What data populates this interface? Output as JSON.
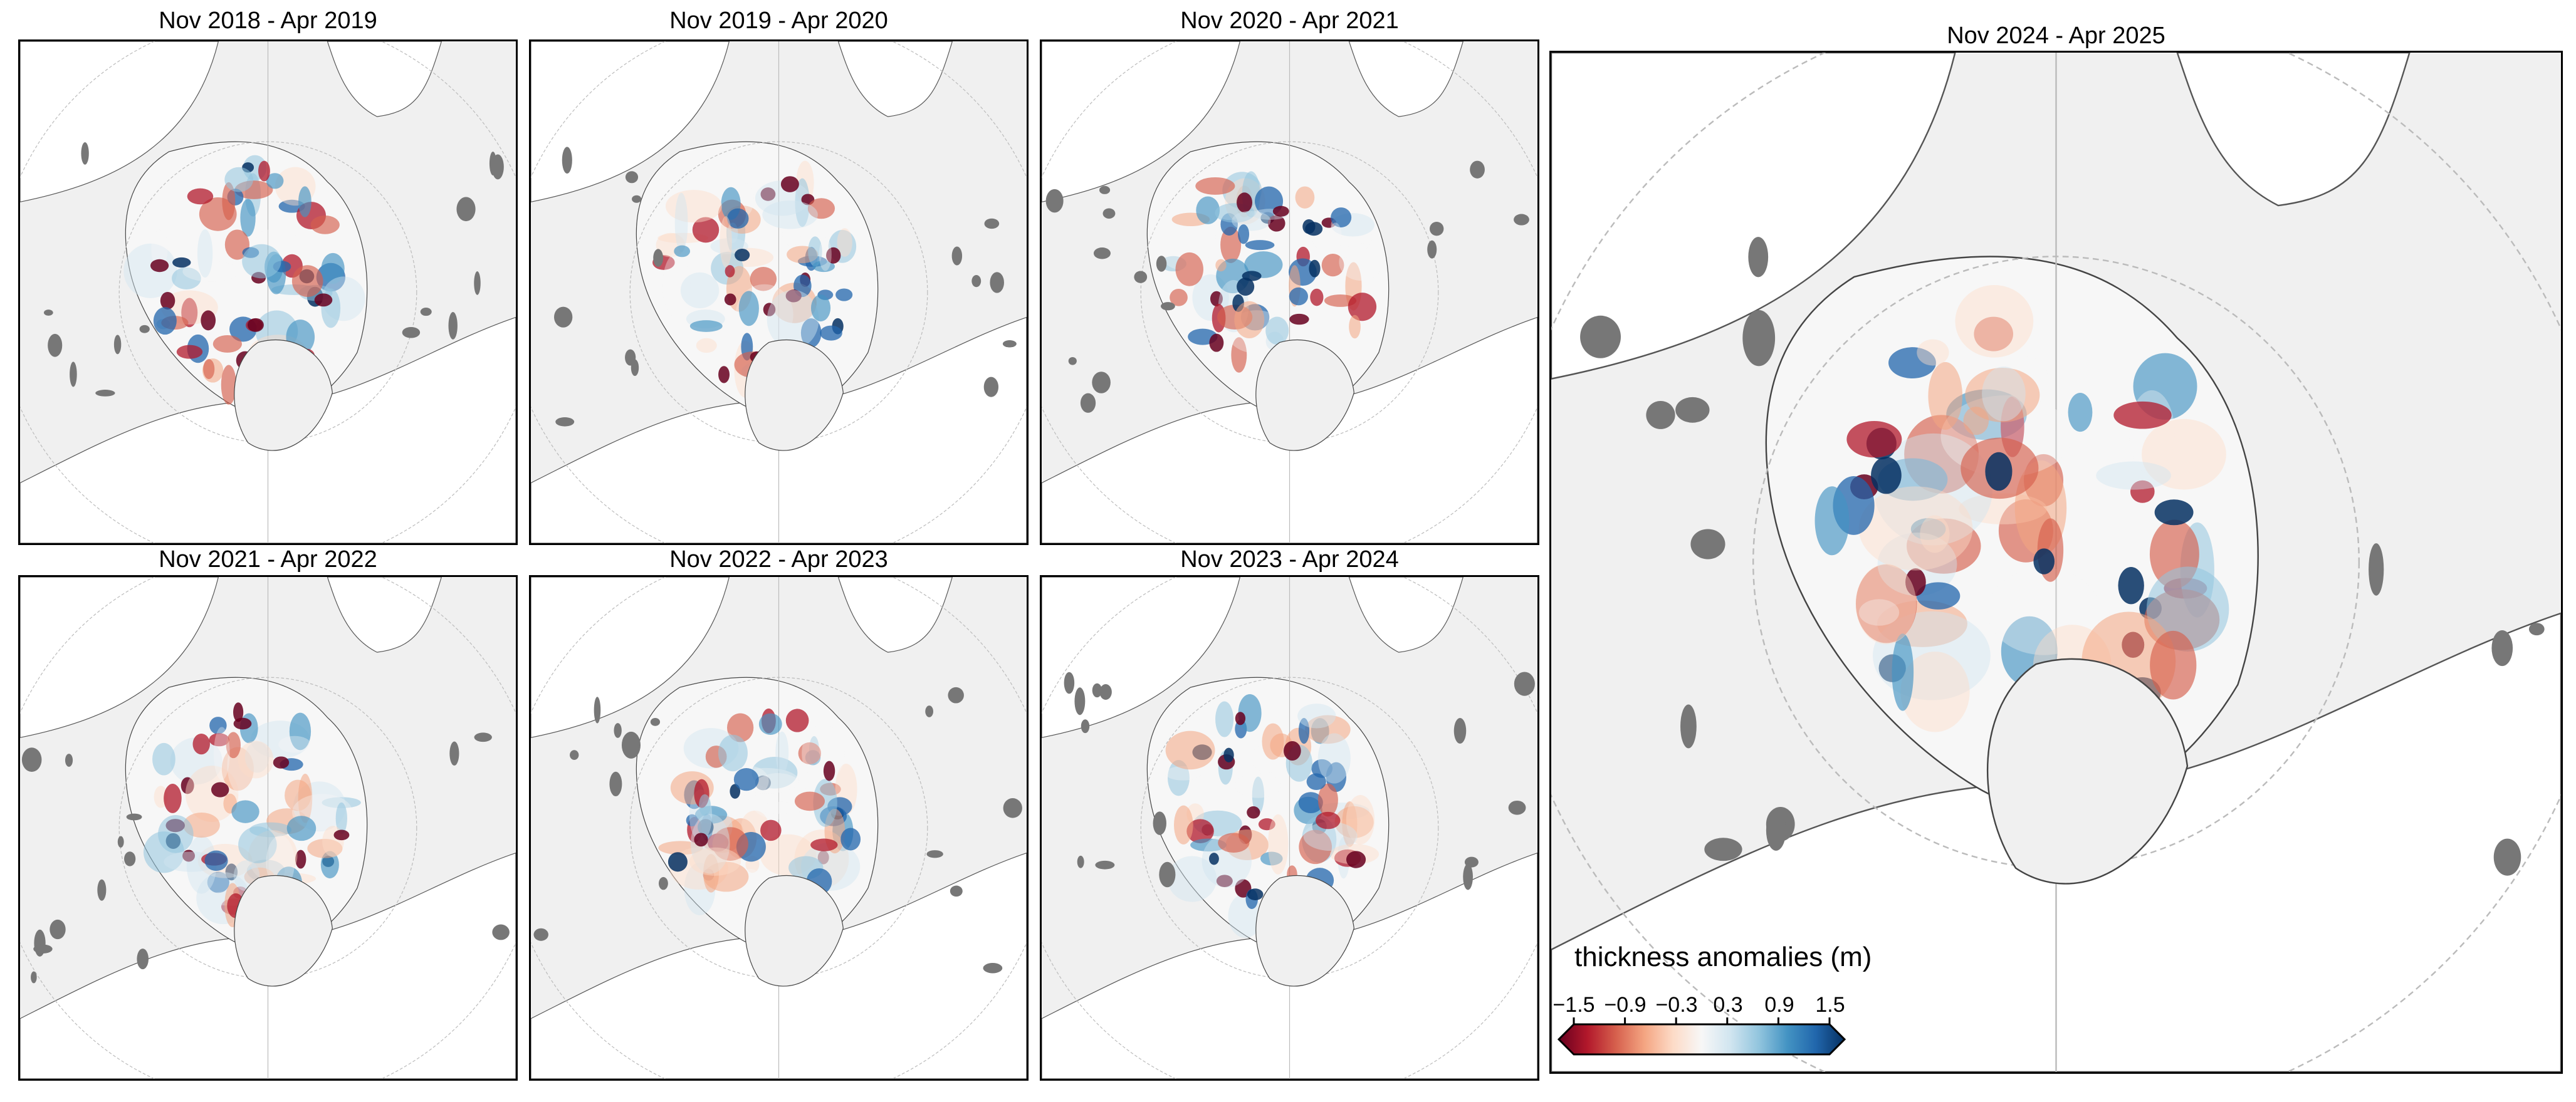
{
  "panels": [
    {
      "title": "Nov 2018 - Apr 2019"
    },
    {
      "title": "Nov 2019 - Apr 2020"
    },
    {
      "title": "Nov 2020 - Apr 2021"
    },
    {
      "title": "Nov 2021 - Apr 2022"
    },
    {
      "title": "Nov 2022 - Apr 2023"
    },
    {
      "title": "Nov 2023 - Apr 2024"
    },
    {
      "title": "Nov 2024 - Apr 2025"
    }
  ],
  "colorbar": {
    "label": "thickness anomalies (m)",
    "ticks": [
      "−1.5",
      "−0.9",
      "−0.3",
      "0.3",
      "0.9",
      "1.5"
    ],
    "range": [
      -1.5,
      1.5
    ],
    "extend": "both",
    "colormap": [
      "#67001f",
      "#b2182b",
      "#d6604d",
      "#f4a582",
      "#fddbc7",
      "#f7f7f7",
      "#d1e5f0",
      "#92c5de",
      "#4393c3",
      "#2166ac",
      "#053061"
    ]
  },
  "colors": {
    "land": "#f0f0f0",
    "ocean": "#ffffff",
    "lakes": "#777777",
    "coast": "#333333"
  }
}
